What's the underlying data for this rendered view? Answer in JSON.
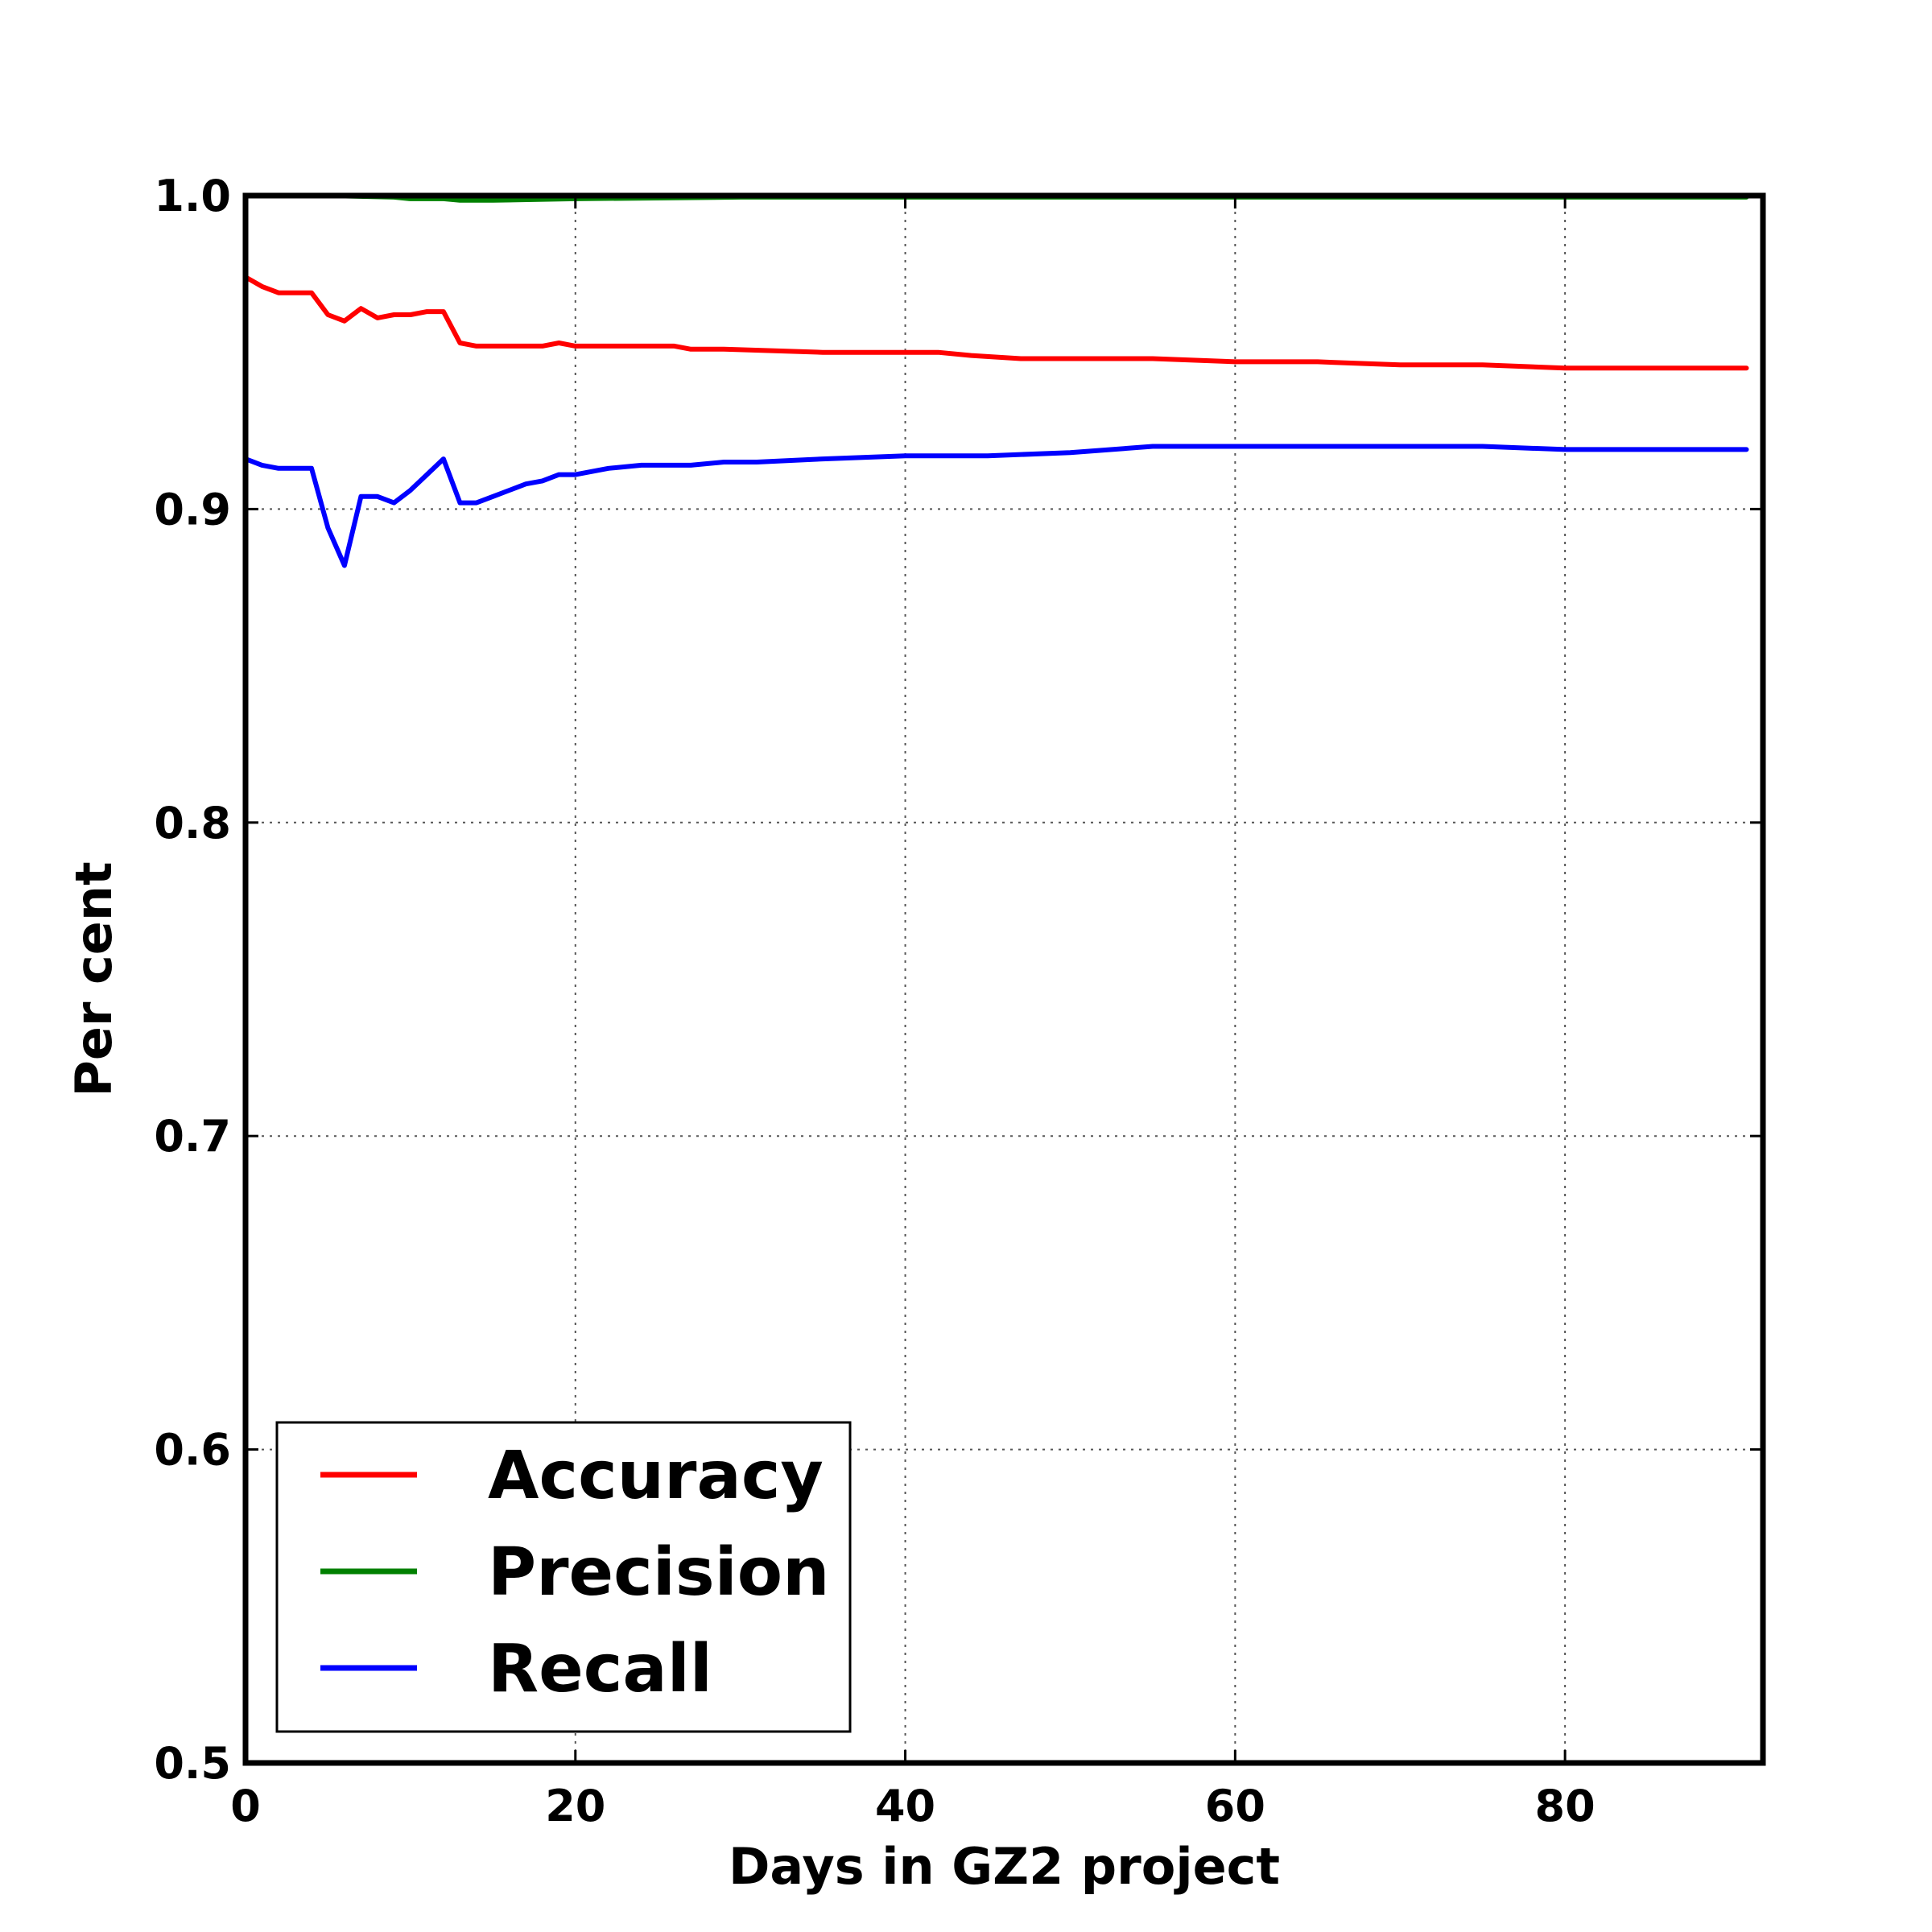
{
  "chart_data": {
    "type": "line",
    "title": "",
    "xlabel": "Days in GZ2 project",
    "ylabel": "Per cent",
    "xlim": [
      0,
      92
    ],
    "ylim": [
      0.5,
      1.0
    ],
    "xticks": [
      0,
      20,
      40,
      60,
      80
    ],
    "xtick_labels": [
      "0",
      "20",
      "40",
      "60",
      "80"
    ],
    "yticks": [
      0.5,
      0.6,
      0.7,
      0.8,
      0.9,
      1.0
    ],
    "ytick_labels": [
      "0.5",
      "0.6",
      "0.7",
      "0.8",
      "0.9",
      "1.0"
    ],
    "grid": true,
    "legend_position": "lower-left",
    "series": [
      {
        "name": "Accuracy",
        "color": "#ff0000",
        "x": [
          0,
          1,
          2,
          3,
          4,
          5,
          6,
          7,
          8,
          9,
          10,
          11,
          12,
          13,
          14,
          15,
          18,
          19,
          20,
          24,
          26,
          27,
          28,
          29,
          35,
          40,
          42,
          44,
          47,
          50,
          55,
          60,
          65,
          70,
          75,
          80,
          85,
          91
        ],
        "values": [
          0.974,
          0.971,
          0.969,
          0.969,
          0.969,
          0.962,
          0.96,
          0.964,
          0.961,
          0.962,
          0.962,
          0.963,
          0.963,
          0.953,
          0.952,
          0.952,
          0.952,
          0.953,
          0.952,
          0.952,
          0.952,
          0.951,
          0.951,
          0.951,
          0.95,
          0.95,
          0.95,
          0.949,
          0.948,
          0.948,
          0.948,
          0.947,
          0.947,
          0.946,
          0.946,
          0.945,
          0.945,
          0.945
        ]
      },
      {
        "name": "Precision",
        "color": "#008000",
        "x": [
          0,
          5,
          9,
          10,
          12,
          13,
          15,
          20,
          30,
          40,
          60,
          91
        ],
        "values": [
          1.0,
          1.0,
          0.9995,
          0.999,
          0.999,
          0.9985,
          0.9985,
          0.999,
          0.9995,
          0.9995,
          0.9995,
          0.9995
        ]
      },
      {
        "name": "Recall",
        "color": "#0000ff",
        "x": [
          0,
          1,
          2,
          3,
          4,
          5,
          6,
          7,
          8,
          9,
          10,
          11,
          12,
          13,
          14,
          15,
          16,
          17,
          18,
          19,
          20,
          22,
          24,
          26,
          27,
          29,
          31,
          35,
          40,
          45,
          50,
          55,
          60,
          65,
          70,
          75,
          80,
          85,
          91
        ],
        "values": [
          0.916,
          0.914,
          0.913,
          0.913,
          0.913,
          0.894,
          0.882,
          0.904,
          0.904,
          0.902,
          0.906,
          0.911,
          0.916,
          0.902,
          0.902,
          0.904,
          0.906,
          0.908,
          0.909,
          0.911,
          0.911,
          0.913,
          0.914,
          0.914,
          0.914,
          0.915,
          0.915,
          0.916,
          0.917,
          0.917,
          0.918,
          0.92,
          0.92,
          0.92,
          0.92,
          0.92,
          0.919,
          0.919,
          0.919
        ]
      }
    ]
  }
}
